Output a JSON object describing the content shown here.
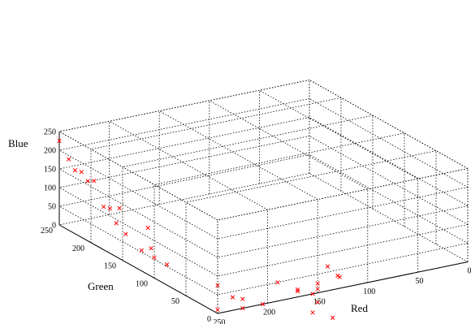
{
  "chart_data": {
    "type": "scatter",
    "projection": "3d",
    "title": "",
    "axes": {
      "red": {
        "label": "Red",
        "range": [
          0,
          250
        ],
        "ticks": [
          250,
          200,
          150,
          100,
          50,
          0
        ]
      },
      "green": {
        "label": "Green",
        "range": [
          0,
          250
        ],
        "ticks": [
          250,
          200,
          150,
          100,
          50,
          0
        ]
      },
      "blue": {
        "label": "Blue",
        "range": [
          0,
          250
        ],
        "ticks": [
          0,
          50,
          100,
          150,
          200,
          250
        ]
      }
    },
    "grid": true,
    "marker": "x",
    "marker_color": "#ff0000",
    "grid_color": "#000000",
    "points": [
      {
        "r": 250,
        "g": 250,
        "b": 225
      },
      {
        "r": 250,
        "g": 235,
        "b": 190
      },
      {
        "r": 250,
        "g": 225,
        "b": 170
      },
      {
        "r": 250,
        "g": 215,
        "b": 175
      },
      {
        "r": 250,
        "g": 205,
        "b": 160
      },
      {
        "r": 250,
        "g": 195,
        "b": 170
      },
      {
        "r": 250,
        "g": 180,
        "b": 115
      },
      {
        "r": 250,
        "g": 170,
        "b": 120
      },
      {
        "r": 250,
        "g": 155,
        "b": 135
      },
      {
        "r": 250,
        "g": 160,
        "b": 90
      },
      {
        "r": 250,
        "g": 145,
        "b": 75
      },
      {
        "r": 250,
        "g": 110,
        "b": 125
      },
      {
        "r": 250,
        "g": 105,
        "b": 75
      },
      {
        "r": 250,
        "g": 120,
        "b": 55
      },
      {
        "r": 250,
        "g": 100,
        "b": 55
      },
      {
        "r": 250,
        "g": 80,
        "b": 55
      },
      {
        "r": 250,
        "g": 0,
        "b": 75
      },
      {
        "r": 250,
        "g": 0,
        "b": 10
      },
      {
        "r": 235,
        "g": 0,
        "b": 35
      },
      {
        "r": 225,
        "g": 0,
        "b": 25
      },
      {
        "r": 225,
        "g": 0,
        "b": 0
      },
      {
        "r": 205,
        "g": 0,
        "b": 0
      },
      {
        "r": 190,
        "g": 0,
        "b": 50
      },
      {
        "r": 170,
        "g": 0,
        "b": 20
      },
      {
        "r": 170,
        "g": 0,
        "b": 15
      },
      {
        "r": 150,
        "g": 0,
        "b": 10
      },
      {
        "r": 150,
        "g": 0,
        "b": 25
      },
      {
        "r": 140,
        "g": 0,
        "b": 65
      },
      {
        "r": 130,
        "g": 0,
        "b": 35
      },
      {
        "r": 128,
        "g": 0,
        "b": 30
      },
      {
        "r": 155,
        "g": 0,
        "b": 0
      },
      {
        "r": 150,
        "g": 0,
        "b": -25
      },
      {
        "r": 155,
        "g": 0,
        "b": -50
      },
      {
        "r": 175,
        "g": 0,
        "b": -75
      },
      {
        "r": 135,
        "g": 0,
        "b": -75
      }
    ]
  }
}
